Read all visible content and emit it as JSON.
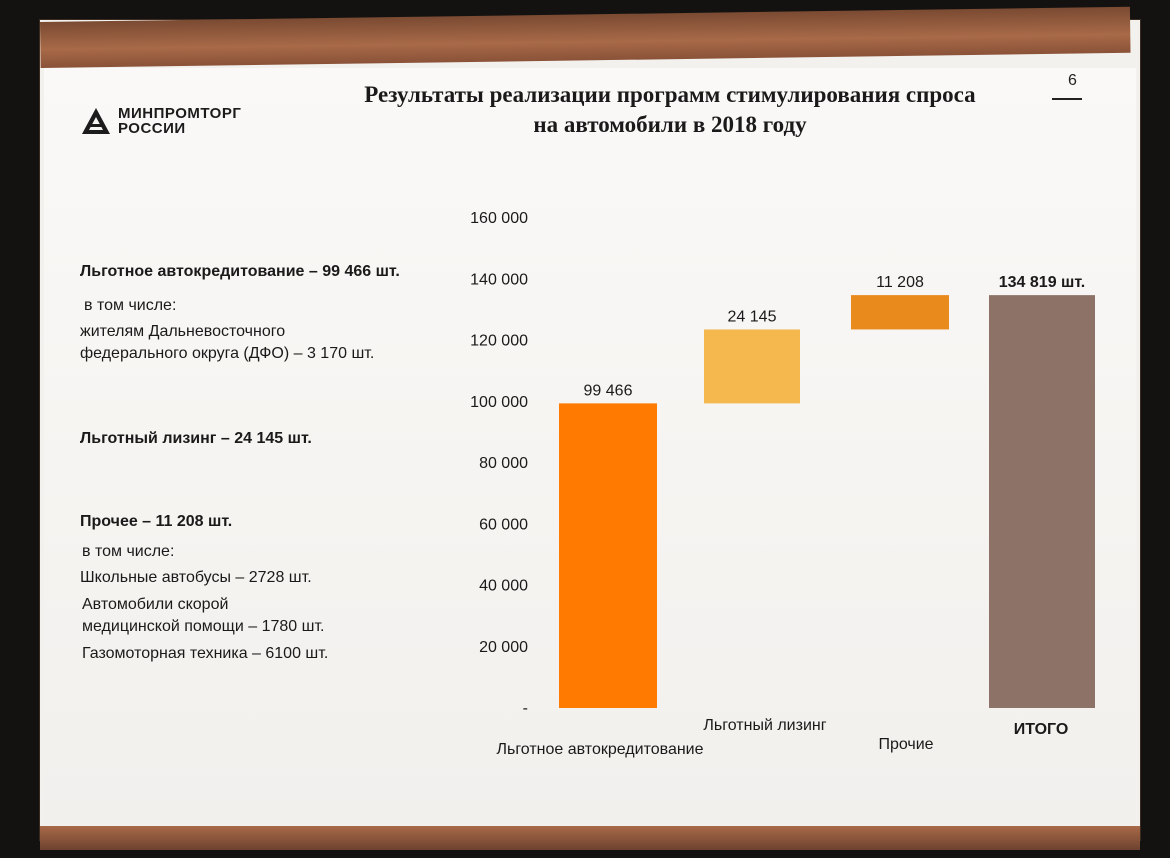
{
  "header": {
    "logo_line1": "МИНПРОМТОРГ",
    "logo_line2": "РОССИИ",
    "title_line1": "Результаты  реализации  программ  стимулирования  спроса",
    "title_line2": "на автомобили  в 2018 году",
    "page_number": "6"
  },
  "left_panel": {
    "item1_heading": "Льготное автокредитование – 99 466 шт.",
    "item1_sub": "в том числе:",
    "item1_detail_line1": "жителям Дальневосточного",
    "item1_detail_line2": "федерального округа (ДФО) – 3 170 шт.",
    "item2_heading": "Льготный лизинг – 24 145 шт.",
    "item3_heading": "Прочее – 11 208 шт.",
    "item3_sub": "в том числе:",
    "item3_detail1": "Школьные автобусы – 2728 шт.",
    "item3_detail2_line1": "Автомобили скорой",
    "item3_detail2_line2": "медицинской помощи – 1780 шт.",
    "item3_detail3": "Газомоторная техника – 6100 шт."
  },
  "chart_data": {
    "type": "bar",
    "subtype": "waterfall",
    "ylim": [
      0,
      160000
    ],
    "yticks": [
      0,
      20000,
      40000,
      60000,
      80000,
      100000,
      120000,
      140000,
      160000
    ],
    "ytick_labels": [
      "-",
      "20 000",
      "40 000",
      "60 000",
      "80 000",
      "100 000",
      "120 000",
      "140 000",
      "160 000"
    ],
    "grid": false,
    "categories": [
      "Льготное автокредитование",
      "Льготный лизинг",
      "Прочие",
      "ИТОГО"
    ],
    "values": [
      99466,
      24145,
      11208,
      134819
    ],
    "bases": [
      0,
      99466,
      123611,
      0
    ],
    "data_labels": [
      "99 466",
      "24 145",
      "11 208",
      "134 819 шт."
    ],
    "colors": [
      "#ff7a00",
      "#f5b84e",
      "#e98a1c",
      "#8d7367"
    ]
  }
}
